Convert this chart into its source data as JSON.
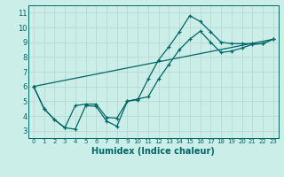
{
  "xlabel": "Humidex (Indice chaleur)",
  "background_color": "#cceee8",
  "grid_color": "#b8d8d4",
  "line_color": "#006666",
  "xlim": [
    -0.5,
    23.5
  ],
  "ylim": [
    2.5,
    11.5
  ],
  "xtick_labels": [
    "0",
    "1",
    "2",
    "3",
    "4",
    "5",
    "6",
    "7",
    "8",
    "9",
    "10",
    "11",
    "12",
    "13",
    "14",
    "15",
    "16",
    "17",
    "18",
    "19",
    "20",
    "21",
    "22",
    "23"
  ],
  "yticks": [
    3,
    4,
    5,
    6,
    7,
    8,
    9,
    10,
    11
  ],
  "line1_x": [
    0,
    1,
    2,
    3,
    4,
    5,
    6,
    7,
    8,
    9,
    10,
    11,
    12,
    13,
    14,
    15,
    16,
    17,
    18,
    19,
    20,
    21,
    22,
    23
  ],
  "line1_y": [
    6.0,
    4.5,
    3.75,
    3.2,
    3.1,
    4.7,
    4.65,
    3.65,
    3.3,
    5.0,
    5.1,
    6.5,
    7.8,
    8.7,
    9.7,
    10.8,
    10.4,
    9.7,
    9.0,
    8.9,
    8.9,
    8.9,
    8.9,
    9.2
  ],
  "line2_x": [
    0,
    1,
    2,
    3,
    4,
    5,
    6,
    7,
    8,
    9,
    10,
    11,
    12,
    13,
    14,
    15,
    16,
    17,
    18,
    19,
    20,
    21,
    22,
    23
  ],
  "line2_y": [
    6.0,
    4.5,
    3.75,
    3.2,
    4.7,
    4.8,
    4.8,
    3.9,
    3.85,
    5.0,
    5.15,
    5.3,
    6.5,
    7.5,
    8.5,
    9.2,
    9.75,
    9.0,
    8.3,
    8.4,
    8.6,
    8.85,
    8.9,
    9.2
  ],
  "line3_x": [
    0,
    23
  ],
  "line3_y": [
    6.0,
    9.2
  ]
}
